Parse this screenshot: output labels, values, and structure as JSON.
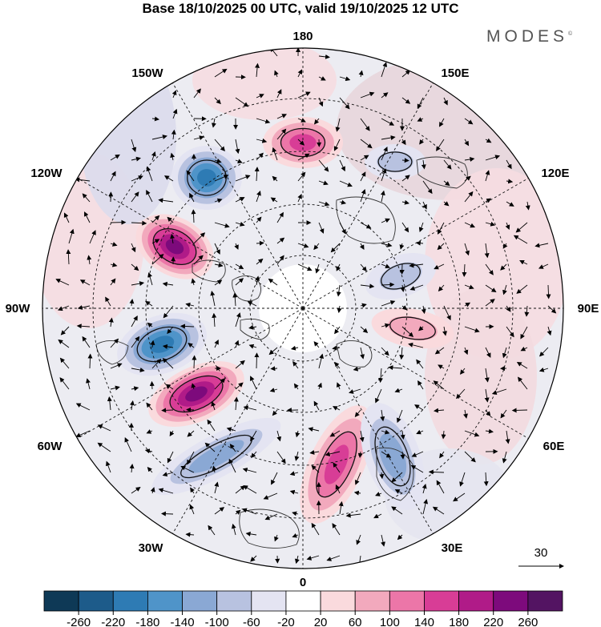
{
  "title": "Base 18/10/2025 00 UTC, valid 19/10/2025 12 UTC",
  "brand": "MODES",
  "brand_mark": "©",
  "longitude_labels": {
    "l180": "180",
    "l150e": "150E",
    "l120e": "120E",
    "l90e": "90E",
    "l60e": "60E",
    "l30e": "30E",
    "l0": "0",
    "l30w": "30W",
    "l60w": "60W",
    "l90w": "90W",
    "l120w": "120W",
    "l150w": "150W"
  },
  "vector_reference": {
    "label": "30"
  },
  "colorbar": {
    "ticks": [
      "-260",
      "-220",
      "-180",
      "-140",
      "-100",
      "-60",
      "-20",
      "20",
      "60",
      "100",
      "140",
      "180",
      "220",
      "260"
    ],
    "colors": [
      "#0e3956",
      "#1d5b8a",
      "#2e7bb4",
      "#4f94c9",
      "#8aa8d4",
      "#b8c2e0",
      "#e4e4f2",
      "#ffffff",
      "#fadadd",
      "#f2a9bd",
      "#ec76a8",
      "#d83d96",
      "#b01b88",
      "#7d0a7c",
      "#531462"
    ]
  },
  "anomalies": [
    {
      "name": "anomaly-positive-north-pacific",
      "value": 180
    },
    {
      "name": "anomaly-negative-gulf-of-alaska",
      "value": -200
    },
    {
      "name": "anomaly-positive-canada",
      "value": 260
    },
    {
      "name": "anomaly-negative-labrador",
      "value": -220
    },
    {
      "name": "anomaly-positive-north-atlantic",
      "value": 260
    },
    {
      "name": "anomaly-negative-mid-atlantic",
      "value": -140
    },
    {
      "name": "anomaly-positive-scandinavia",
      "value": 180
    },
    {
      "name": "anomaly-negative-western-russia",
      "value": -140
    },
    {
      "name": "anomaly-positive-siberia",
      "value": 100
    },
    {
      "name": "anomaly-negative-east-siberia",
      "value": -100
    },
    {
      "name": "anomaly-negative-kamchatka",
      "value": -100
    }
  ]
}
